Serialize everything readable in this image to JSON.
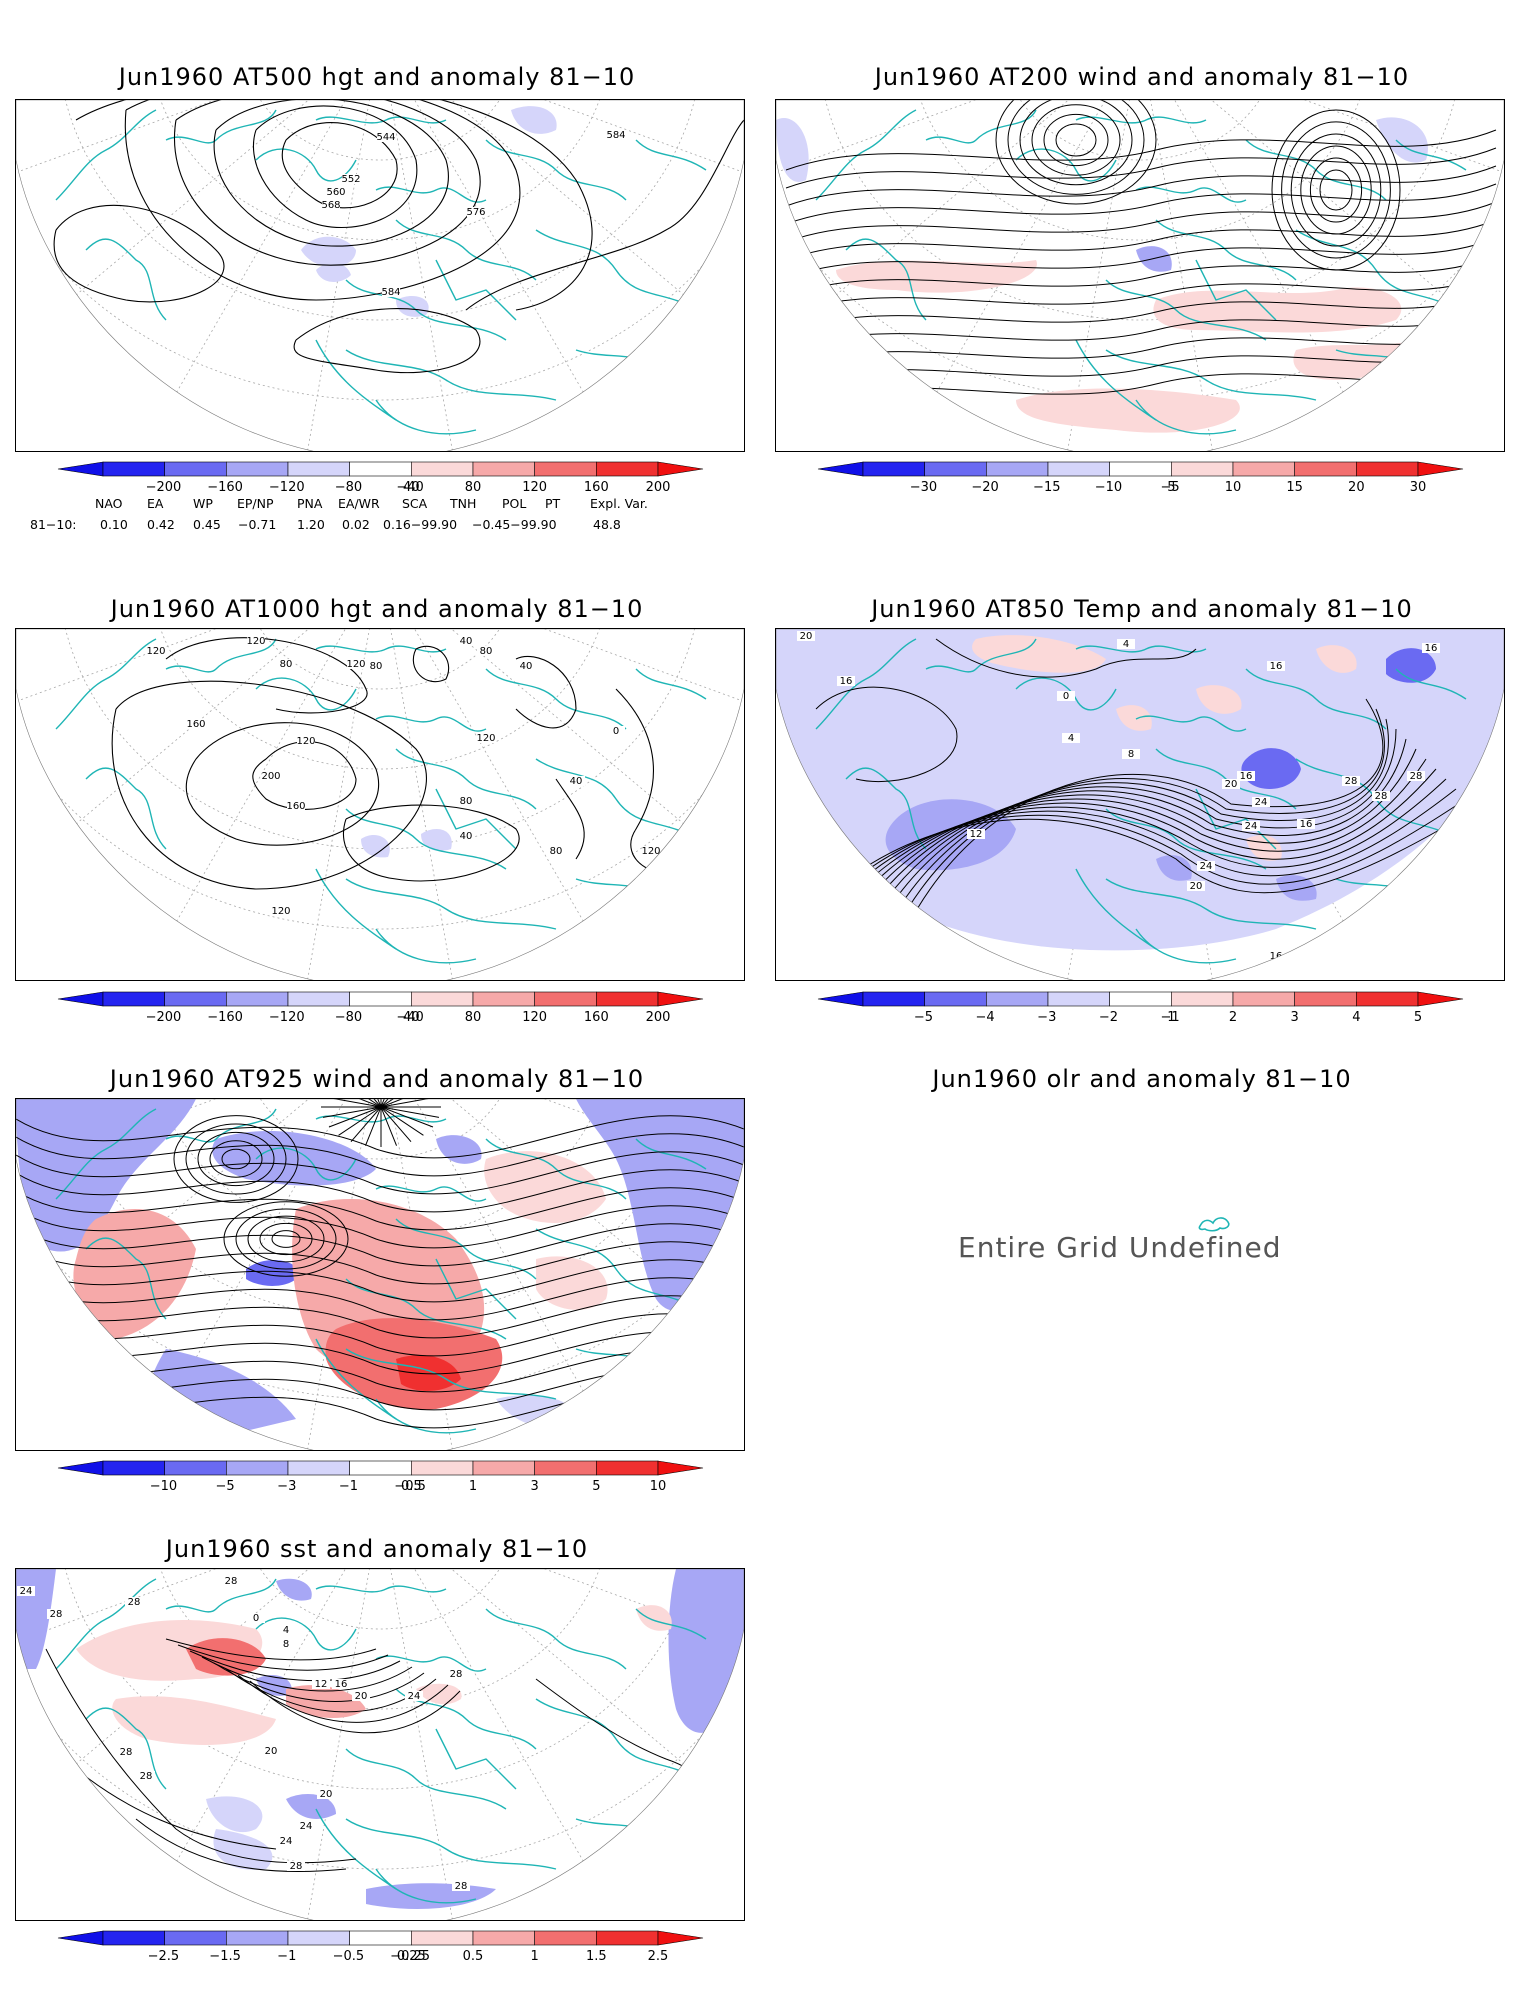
{
  "colors": {
    "coast": "#1fb5b5",
    "contour": "#000000",
    "neg_strong": "#2424f0",
    "neg_mid": "#6a6af2",
    "neg_light": "#a7a7f5",
    "neg_faint": "#d5d5fa",
    "pos_faint": "#fbd9d9",
    "pos_light": "#f6a9a9",
    "pos_mid": "#f26f6f",
    "pos_strong": "#f03030"
  },
  "panels": [
    {
      "id": "at500",
      "title": "Jun1960 AT500 hgt and anomaly 81−10",
      "contour_labels": [
        "544",
        "552",
        "560",
        "568",
        "576",
        "584",
        "584"
      ],
      "colorbar": [
        "−200",
        "−160",
        "−120",
        "−80",
        "−40",
        "40",
        "80",
        "120",
        "160",
        "200"
      ]
    },
    {
      "id": "at200",
      "title": "Jun1960 AT200 wind and anomaly 81−10",
      "contour_labels": [],
      "colorbar": [
        "−30",
        "−20",
        "−15",
        "−10",
        "−5",
        "5",
        "10",
        "15",
        "20",
        "30"
      ]
    },
    {
      "id": "at1000",
      "title": "Jun1960 AT1000 hgt and anomaly 81−10",
      "contour_labels": [
        "120",
        "120",
        "80",
        "120",
        "80",
        "40",
        "80",
        "40",
        "160",
        "120",
        "200",
        "0",
        "120",
        "40",
        "160",
        "80",
        "40",
        "80",
        "120",
        "120"
      ],
      "colorbar": [
        "−200",
        "−160",
        "−120",
        "−80",
        "−40",
        "40",
        "80",
        "120",
        "160",
        "200"
      ]
    },
    {
      "id": "at850",
      "title": "Jun1960 AT850 Temp and anomaly 81−10",
      "contour_labels": [
        "20",
        "4",
        "16",
        "16",
        "0",
        "4",
        "8",
        "16",
        "16",
        "12",
        "20",
        "28",
        "24",
        "16",
        "24",
        "28",
        "28",
        "24",
        "20",
        "16"
      ],
      "colorbar": [
        "−5",
        "−4",
        "−3",
        "−2",
        "−1",
        "1",
        "2",
        "3",
        "4",
        "5"
      ]
    },
    {
      "id": "at925",
      "title": "Jun1960 AT925 wind and anomaly 81−10",
      "contour_labels": [],
      "colorbar": [
        "−10",
        "−5",
        "−3",
        "−1",
        "−0.5",
        "0.5",
        "1",
        "3",
        "5",
        "10"
      ]
    },
    {
      "id": "olr",
      "title": "Jun1960 olr and anomaly 81−10",
      "message": "Entire Grid Undefined"
    },
    {
      "id": "sst",
      "title": "Jun1960 sst and anomaly 81−10",
      "contour_labels": [
        "24",
        "28",
        "28",
        "28",
        "0",
        "4",
        "8",
        "12",
        "16",
        "20",
        "24",
        "28",
        "20",
        "28",
        "28",
        "24",
        "20",
        "24",
        "28",
        "28"
      ],
      "colorbar": [
        "−2.5",
        "−1.5",
        "−1",
        "−0.5",
        "−0.25",
        "0.25",
        "0.5",
        "1",
        "1.5",
        "2.5"
      ]
    }
  ],
  "teleconnections": {
    "headers": [
      "NAO",
      "EA",
      "WP",
      "EP/NP",
      "PNA",
      "EA/WR",
      "SCA",
      "TNH",
      "POL",
      "PT",
      "Expl. Var."
    ],
    "row_label": "81−10:",
    "values": [
      "0.10",
      "0.42",
      "0.45",
      "−0.71",
      "1.20",
      "0.02",
      "0.16−99.90",
      "−0.45−99.90",
      "48.8"
    ]
  }
}
